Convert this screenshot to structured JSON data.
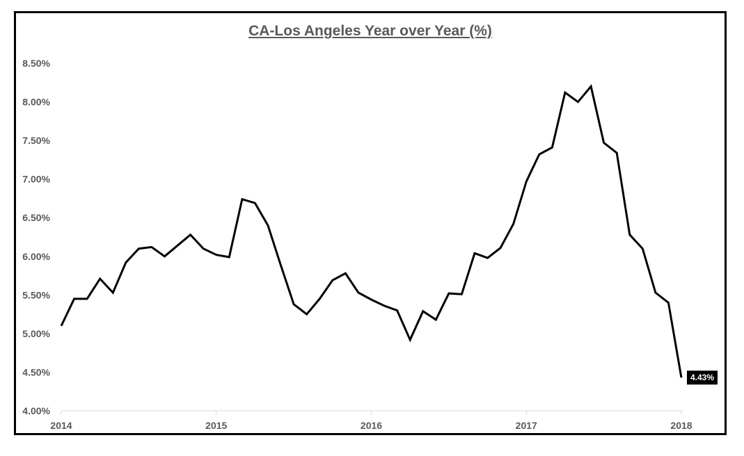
{
  "chart_data": {
    "type": "line",
    "title": "CA-Los Angeles Year over Year (%)",
    "xlabel": "",
    "ylabel": "",
    "ylim": [
      4.0,
      8.5
    ],
    "yticks": [
      "4.00%",
      "4.50%",
      "5.00%",
      "5.50%",
      "6.00%",
      "6.50%",
      "7.00%",
      "7.50%",
      "8.00%",
      "8.50%"
    ],
    "xticks": [
      "2014",
      "2015",
      "2016",
      "2017",
      "2018"
    ],
    "grid": false,
    "legend": "none",
    "line_color": "#000000",
    "series": [
      {
        "x": [
          "2014-01",
          "2014-02",
          "2014-03",
          "2014-04",
          "2014-05",
          "2014-06",
          "2014-07",
          "2014-08",
          "2014-09",
          "2014-10",
          "2014-11",
          "2014-12",
          "2015-01",
          "2015-02",
          "2015-03",
          "2015-04",
          "2015-05",
          "2015-06",
          "2015-07",
          "2015-08",
          "2015-09",
          "2015-10",
          "2015-11",
          "2015-12",
          "2016-01",
          "2016-02",
          "2016-03",
          "2016-04",
          "2016-05",
          "2016-06",
          "2016-07",
          "2016-08",
          "2016-09",
          "2016-10",
          "2016-11",
          "2016-12",
          "2017-01",
          "2017-02",
          "2017-03",
          "2017-04",
          "2017-05",
          "2017-06",
          "2017-07",
          "2017-08",
          "2017-09",
          "2017-10",
          "2017-11",
          "2017-12",
          "2018-01"
        ],
        "values": [
          5.1,
          5.45,
          5.45,
          5.71,
          5.53,
          5.92,
          6.1,
          6.12,
          6.0,
          6.14,
          6.28,
          6.1,
          6.02,
          5.99,
          6.74,
          6.69,
          6.4,
          5.88,
          5.38,
          5.25,
          5.45,
          5.69,
          5.78,
          5.53,
          5.44,
          5.36,
          5.3,
          4.92,
          5.29,
          5.18,
          5.52,
          5.51,
          6.04,
          5.98,
          6.11,
          6.42,
          6.97,
          7.32,
          7.41,
          8.12,
          8.0,
          8.2,
          7.47,
          7.34,
          6.28,
          6.1,
          5.53,
          5.4,
          4.43
        ]
      }
    ],
    "annotations": [
      {
        "x": "2018-01",
        "text": "4.43%"
      }
    ]
  }
}
